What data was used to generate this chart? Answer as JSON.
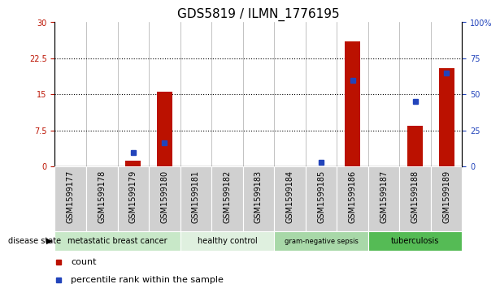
{
  "title": "GDS5819 / ILMN_1776195",
  "samples": [
    "GSM1599177",
    "GSM1599178",
    "GSM1599179",
    "GSM1599180",
    "GSM1599181",
    "GSM1599182",
    "GSM1599183",
    "GSM1599184",
    "GSM1599185",
    "GSM1599186",
    "GSM1599187",
    "GSM1599188",
    "GSM1599189"
  ],
  "counts": [
    0,
    0,
    1.2,
    15.5,
    0,
    0,
    0,
    0,
    0,
    26.0,
    0,
    8.5,
    20.5
  ],
  "percentile_ranks": [
    null,
    null,
    10.0,
    16.5,
    null,
    null,
    null,
    null,
    3.0,
    60.0,
    null,
    45.0,
    65.0
  ],
  "disease_groups": [
    {
      "label": "metastatic breast cancer",
      "start": 0,
      "end": 4,
      "color": "#c8e8c8"
    },
    {
      "label": "healthy control",
      "start": 4,
      "end": 7,
      "color": "#dff0df"
    },
    {
      "label": "gram-negative sepsis",
      "start": 7,
      "end": 10,
      "color": "#a8d8a8"
    },
    {
      "label": "tuberculosis",
      "start": 10,
      "end": 13,
      "color": "#55bb55"
    }
  ],
  "left_ylim": [
    0,
    30
  ],
  "right_ylim": [
    0,
    100
  ],
  "left_yticks": [
    0,
    7.5,
    15,
    22.5,
    30
  ],
  "right_yticks": [
    0,
    25,
    50,
    75,
    100
  ],
  "right_yticklabels": [
    "0",
    "25",
    "50",
    "75",
    "100%"
  ],
  "bar_color": "#bb1100",
  "marker_color": "#2244bb",
  "bg_color": "#ffffff",
  "sample_bg_color": "#d0d0d0",
  "grid_color": "#000000",
  "title_fontsize": 11,
  "tick_fontsize": 7,
  "legend_fontsize": 8
}
